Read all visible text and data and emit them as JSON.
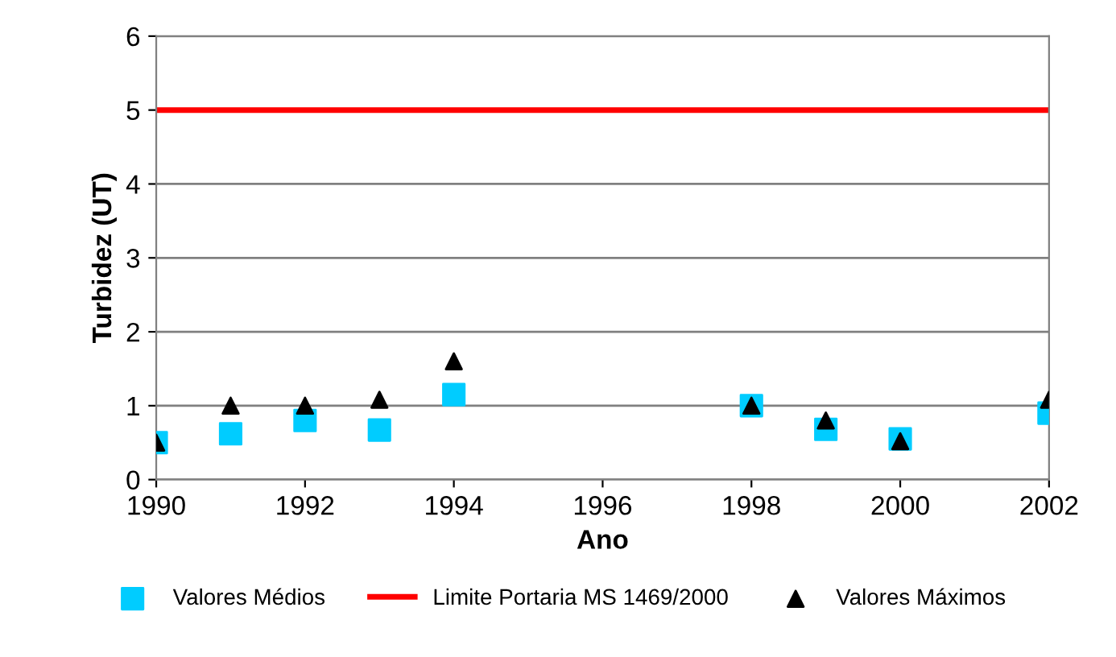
{
  "chart_data": {
    "type": "scatter",
    "xlabel": "Ano",
    "ylabel": "Turbidez (UT)",
    "x": [
      1990,
      1991,
      1992,
      1993,
      1994,
      1998,
      1999,
      2000,
      2002
    ],
    "series": [
      {
        "name": "Valores Médios",
        "color": "#00ccff",
        "marker": "square",
        "values": [
          0.5,
          0.62,
          0.8,
          0.67,
          1.15,
          1.0,
          0.68,
          0.55,
          0.9
        ]
      },
      {
        "name": "Limite Portaria MS 1469/2000",
        "type": "line",
        "color": "#ff0000",
        "x": [
          1990,
          2002
        ],
        "values": [
          5,
          5
        ],
        "marker": "none",
        "line_style": "solid"
      },
      {
        "name": "Valores Máximos",
        "color": "#000000",
        "marker": "triangle",
        "values": [
          0.5,
          1.0,
          1.0,
          1.08,
          1.6,
          1.0,
          0.8,
          0.52,
          1.08
        ]
      }
    ],
    "xlim": [
      1990,
      2002
    ],
    "xticks": [
      1990,
      1992,
      1994,
      1996,
      1998,
      2000,
      2002
    ],
    "ylim": [
      0,
      6
    ],
    "yticks": [
      0,
      1,
      2,
      3,
      4,
      5,
      6
    ],
    "grid": "y",
    "legend": "bottom"
  }
}
